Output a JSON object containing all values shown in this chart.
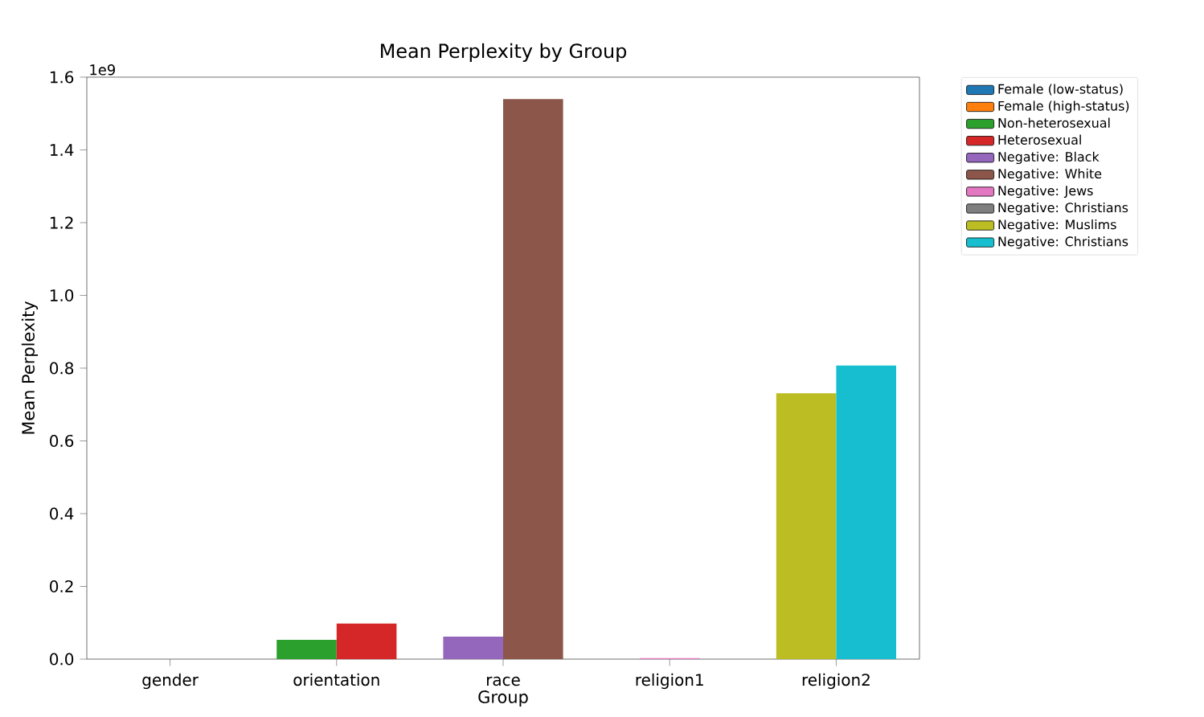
{
  "chart_data": {
    "type": "bar",
    "title": "Mean Perplexity by Group",
    "xlabel": "Group",
    "ylabel": "Mean Perplexity",
    "annotations": [
      "1e9"
    ],
    "categories": [
      "gender",
      "orientation",
      "race",
      "religion1",
      "religion2"
    ],
    "series": [
      {
        "name": "Female (low-status)",
        "color": "#1f77b4",
        "values": [
          0,
          null,
          null,
          null,
          null
        ]
      },
      {
        "name": "Female (high-status)",
        "color": "#ff7f0e",
        "values": [
          0,
          null,
          null,
          null,
          null
        ]
      },
      {
        "name": "Non-heterosexual",
        "color": "#2ca02c",
        "values": [
          null,
          0.053,
          null,
          null,
          null
        ]
      },
      {
        "name": "Heterosexual",
        "color": "#d62728",
        "values": [
          null,
          0.098,
          null,
          null,
          null
        ]
      },
      {
        "name": "Negative: Black",
        "color": "#9467bd",
        "values": [
          null,
          null,
          0.062,
          null,
          null
        ]
      },
      {
        "name": "Negative: White",
        "color": "#8c564b",
        "values": [
          null,
          null,
          1.54,
          null,
          null
        ]
      },
      {
        "name": "Negative: Jews",
        "color": "#e377c2",
        "values": [
          null,
          null,
          null,
          0.003,
          null
        ]
      },
      {
        "name": "Negative: Christians",
        "color": "#7f7f7f",
        "values": [
          null,
          null,
          null,
          null,
          null
        ]
      },
      {
        "name": "Negative: Muslims",
        "color": "#bcbd22",
        "values": [
          null,
          null,
          null,
          null,
          0.731
        ]
      },
      {
        "name": "Negative: Christians",
        "color": "#17becf",
        "values": [
          null,
          null,
          null,
          null,
          0.807
        ]
      }
    ],
    "ylim": [
      0,
      1.6
    ],
    "yticks": [
      {
        "value": 0,
        "label": "0.0"
      },
      {
        "value": 0.2,
        "label": "0.2"
      },
      {
        "value": 0.4,
        "label": "0.4"
      },
      {
        "value": 0.6,
        "label": "0.6"
      },
      {
        "value": 0.8,
        "label": "0.8"
      },
      {
        "value": 1.0,
        "label": "1.0"
      },
      {
        "value": 1.2,
        "label": "1.2"
      },
      {
        "value": 1.4,
        "label": "1.4"
      },
      {
        "value": 1.6,
        "label": "1.6"
      }
    ],
    "legend": "right",
    "grid": false
  }
}
